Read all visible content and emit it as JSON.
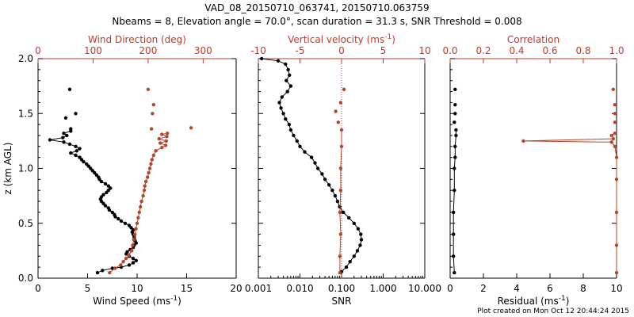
{
  "title": "VAD_08_20150710_063741, 20150710.063759",
  "subtitle": "Nbeams = 8, Elevation angle = 70.0°, scan duration = 31.3 s, SNR Threshold = 0.008",
  "footer": "Plot created on Mon Oct 12 20:44:24 2015",
  "colors": {
    "black": "#000000",
    "red": "#c0392b",
    "brown": "#b5452b"
  },
  "chart_data": [
    {
      "type": "line",
      "ylabel": "z (km AGL)",
      "ylim": [
        0,
        2.0
      ],
      "yticks": [
        "0.0",
        "0.5",
        "1.0",
        "1.5",
        "2.0"
      ],
      "bottom_axis": {
        "label_text": "Wind Speed (ms",
        "label_sup": "-1",
        "label_close": ")",
        "xlim": [
          0,
          20
        ],
        "ticks": [
          "0",
          "5",
          "10",
          "15",
          "20"
        ],
        "color": "#000000"
      },
      "top_axis": {
        "label_text": "Wind Direction (deg)",
        "label_sup": "",
        "label_close": "",
        "xlim": [
          0,
          360
        ],
        "ticks": [
          "0",
          "100",
          "200",
          "300"
        ],
        "ticks_at": [
          0,
          100,
          200,
          300
        ],
        "color": "#c0392b"
      },
      "series": [
        {
          "axis": "bottom",
          "color": "#000000",
          "connected": true,
          "points": [
            [
              6,
              0.05
            ],
            [
              6.5,
              0.07
            ],
            [
              7.5,
              0.09
            ],
            [
              8.4,
              0.1
            ],
            [
              9.2,
              0.12
            ],
            [
              9.6,
              0.14
            ],
            [
              9.9,
              0.16
            ],
            [
              9.6,
              0.18
            ],
            [
              9.2,
              0.2
            ],
            [
              8.9,
              0.22
            ],
            [
              9.0,
              0.24
            ],
            [
              9.3,
              0.26
            ],
            [
              9.6,
              0.28
            ],
            [
              9.7,
              0.3
            ],
            [
              9.9,
              0.32
            ],
            [
              9.8,
              0.34
            ],
            [
              9.7,
              0.36
            ],
            [
              9.7,
              0.38
            ],
            [
              9.6,
              0.4
            ],
            [
              9.5,
              0.42
            ],
            [
              9.6,
              0.44
            ],
            [
              9.4,
              0.46
            ],
            [
              9.2,
              0.48
            ],
            [
              8.8,
              0.5
            ],
            [
              8.4,
              0.52
            ],
            [
              8.1,
              0.54
            ],
            [
              7.8,
              0.56
            ],
            [
              7.7,
              0.58
            ],
            [
              7.5,
              0.6
            ],
            [
              7.2,
              0.62
            ],
            [
              7.1,
              0.64
            ],
            [
              6.8,
              0.66
            ],
            [
              6.6,
              0.68
            ],
            [
              6.4,
              0.7
            ],
            [
              6.3,
              0.72
            ],
            [
              6.4,
              0.74
            ],
            [
              6.6,
              0.76
            ],
            [
              6.9,
              0.78
            ],
            [
              7.1,
              0.8
            ],
            [
              7.3,
              0.82
            ],
            [
              7.1,
              0.84
            ],
            [
              6.8,
              0.86
            ],
            [
              6.4,
              0.88
            ],
            [
              6.2,
              0.9
            ],
            [
              6.1,
              0.92
            ],
            [
              5.9,
              0.94
            ],
            [
              5.7,
              0.96
            ],
            [
              5.5,
              0.98
            ],
            [
              5.3,
              1.0
            ],
            [
              5.1,
              1.02
            ],
            [
              4.9,
              1.04
            ],
            [
              4.6,
              1.06
            ],
            [
              4.4,
              1.08
            ],
            [
              4.2,
              1.1
            ],
            [
              3.8,
              1.12
            ],
            [
              3.3,
              1.14
            ],
            [
              3.9,
              1.16
            ],
            [
              4.2,
              1.18
            ],
            [
              3.8,
              1.2
            ],
            [
              3.2,
              1.22
            ],
            [
              2.6,
              1.24
            ],
            [
              1.2,
              1.26
            ],
            [
              2.5,
              1.28
            ],
            [
              2.9,
              1.3
            ],
            [
              2.6,
              1.32
            ],
            [
              3.3,
              1.34
            ]
          ]
        },
        {
          "axis": "bottom",
          "color": "#000000",
          "connected": false,
          "points": [
            [
              3.3,
              1.36
            ],
            [
              2.8,
              1.46
            ],
            [
              3.8,
              1.5
            ],
            [
              3.2,
              1.72
            ]
          ]
        },
        {
          "axis": "top",
          "color": "#b5452b",
          "connected": true,
          "points": [
            [
              130,
              0.05
            ],
            [
              140,
              0.09
            ],
            [
              150,
              0.12
            ],
            [
              155,
              0.15
            ],
            [
              160,
              0.18
            ],
            [
              165,
              0.21
            ],
            [
              170,
              0.25
            ],
            [
              172,
              0.3
            ],
            [
              174,
              0.35
            ],
            [
              176,
              0.4
            ],
            [
              178,
              0.45
            ],
            [
              180,
              0.5
            ],
            [
              182,
              0.55
            ],
            [
              184,
              0.6
            ],
            [
              186,
              0.65
            ],
            [
              188,
              0.7
            ],
            [
              191,
              0.75
            ],
            [
              193,
              0.8
            ],
            [
              194,
              0.84
            ],
            [
              196,
              0.88
            ],
            [
              199,
              0.92
            ],
            [
              201,
              0.96
            ],
            [
              203,
              1.0
            ],
            [
              205,
              1.04
            ],
            [
              207,
              1.08
            ],
            [
              210,
              1.12
            ],
            [
              214,
              1.16
            ],
            [
              225,
              1.19
            ],
            [
              232,
              1.21
            ],
            [
              222,
              1.23
            ],
            [
              233,
              1.25
            ],
            [
              220,
              1.27
            ],
            [
              234,
              1.29
            ],
            [
              225,
              1.31
            ],
            [
              235,
              1.32
            ]
          ]
        },
        {
          "axis": "top",
          "color": "#b5452b",
          "connected": false,
          "points": [
            [
              206,
              1.36
            ],
            [
              208,
              1.5
            ],
            [
              210,
              1.58
            ],
            [
              278,
              1.37
            ],
            [
              200,
              1.72
            ]
          ]
        }
      ]
    },
    {
      "type": "line",
      "ylim": [
        0,
        2.0
      ],
      "bottom_axis": {
        "label_text": "SNR",
        "label_sup": "",
        "label_close": "",
        "scale": "log",
        "xlim": [
          0.001,
          10
        ],
        "ticks": [
          "0.001",
          "0.010",
          "0.100",
          "1.000",
          "10.000"
        ],
        "ticks_at": [
          0.001,
          0.01,
          0.1,
          1,
          10
        ],
        "color": "#000000"
      },
      "top_axis": {
        "label_text": "Vertical velocity (ms",
        "label_sup": "-1",
        "label_close": ")",
        "xlim": [
          -10,
          10
        ],
        "ticks": [
          "-10",
          "-5",
          "0",
          "5",
          "10"
        ],
        "ticks_at": [
          -10,
          -5,
          0,
          5,
          10
        ],
        "color": "#c0392b",
        "reference_line": 0
      },
      "series": [
        {
          "axis": "bottom",
          "color": "#000000",
          "connected": true,
          "points": [
            [
              0.1,
              0.06
            ],
            [
              0.13,
              0.1
            ],
            [
              0.16,
              0.15
            ],
            [
              0.2,
              0.2
            ],
            [
              0.24,
              0.25
            ],
            [
              0.28,
              0.3
            ],
            [
              0.3,
              0.35
            ],
            [
              0.29,
              0.4
            ],
            [
              0.25,
              0.45
            ],
            [
              0.2,
              0.5
            ],
            [
              0.15,
              0.55
            ],
            [
              0.11,
              0.6
            ],
            [
              0.09,
              0.65
            ],
            [
              0.08,
              0.7
            ],
            [
              0.07,
              0.75
            ],
            [
              0.06,
              0.8
            ],
            [
              0.05,
              0.85
            ],
            [
              0.04,
              0.9
            ],
            [
              0.034,
              0.95
            ],
            [
              0.027,
              1.0
            ],
            [
              0.023,
              1.05
            ],
            [
              0.019,
              1.1
            ],
            [
              0.013,
              1.15
            ],
            [
              0.01,
              1.2
            ],
            [
              0.0085,
              1.25
            ],
            [
              0.007,
              1.3
            ],
            [
              0.006,
              1.35
            ],
            [
              0.0055,
              1.4
            ],
            [
              0.0045,
              1.45
            ],
            [
              0.004,
              1.5
            ],
            [
              0.0035,
              1.55
            ],
            [
              0.0032,
              1.6
            ],
            [
              0.0037,
              1.65
            ],
            [
              0.005,
              1.7
            ],
            [
              0.006,
              1.75
            ],
            [
              0.0047,
              1.8
            ],
            [
              0.0056,
              1.85
            ],
            [
              0.0052,
              1.9
            ],
            [
              0.0045,
              1.95
            ],
            [
              0.003,
              1.98
            ],
            [
              0.0012,
              2.0
            ]
          ]
        },
        {
          "axis": "top",
          "color": "#b5452b",
          "connected": true,
          "points": [
            [
              -0.2,
              0.05
            ],
            [
              -0.2,
              0.2
            ],
            [
              -0.1,
              0.4
            ],
            [
              -0.2,
              0.6
            ],
            [
              -0.1,
              0.8
            ],
            [
              -0.1,
              1.0
            ],
            [
              0.0,
              1.2
            ],
            [
              0.0,
              1.35
            ]
          ]
        },
        {
          "axis": "top",
          "color": "#b5452b",
          "connected": false,
          "points": [
            [
              -0.4,
              1.42
            ],
            [
              -0.7,
              1.52
            ],
            [
              -0.1,
              1.6
            ],
            [
              0.3,
              1.72
            ]
          ]
        }
      ]
    },
    {
      "type": "line",
      "ylim": [
        0,
        2.0
      ],
      "bottom_axis": {
        "label_text": "Residual (ms",
        "label_sup": "-1",
        "label_close": ")",
        "xlim": [
          0,
          10
        ],
        "ticks": [
          "0",
          "2",
          "4",
          "6",
          "8",
          "10"
        ],
        "ticks_at": [
          0,
          2,
          4,
          6,
          8,
          10
        ],
        "color": "#000000"
      },
      "top_axis": {
        "label_text": "Correlation",
        "label_sup": "",
        "label_close": "",
        "xlim": [
          0,
          1
        ],
        "ticks": [
          "0.0",
          "0.2",
          "0.4",
          "0.6",
          "0.8",
          "1.0"
        ],
        "ticks_at": [
          0,
          0.2,
          0.4,
          0.6,
          0.8,
          1.0
        ],
        "color": "#c0392b"
      },
      "series": [
        {
          "axis": "bottom",
          "color": "#000000",
          "connected": true,
          "points": [
            [
              0.25,
              0.05
            ],
            [
              0.2,
              0.2
            ],
            [
              0.2,
              0.4
            ],
            [
              0.2,
              0.6
            ],
            [
              0.25,
              0.8
            ],
            [
              0.25,
              1.0
            ],
            [
              0.3,
              1.1
            ],
            [
              0.3,
              1.2
            ],
            [
              0.35,
              1.3
            ],
            [
              0.35,
              1.35
            ]
          ]
        },
        {
          "axis": "bottom",
          "color": "#000000",
          "connected": false,
          "points": [
            [
              0.25,
              1.42
            ],
            [
              0.3,
              1.5
            ],
            [
              0.3,
              1.58
            ],
            [
              0.3,
              1.72
            ]
          ]
        },
        {
          "axis": "top",
          "color": "#b5452b",
          "connected": true,
          "points": [
            [
              1.0,
              0.05
            ],
            [
              1.0,
              0.3
            ],
            [
              1.0,
              0.6
            ],
            [
              1.0,
              0.9
            ],
            [
              1.0,
              1.1
            ],
            [
              0.99,
              1.2
            ],
            [
              0.97,
              1.24
            ],
            [
              0.44,
              1.25
            ],
            [
              0.98,
              1.27
            ],
            [
              0.97,
              1.3
            ],
            [
              0.99,
              1.32
            ]
          ]
        },
        {
          "axis": "top",
          "color": "#b5452b",
          "connected": false,
          "points": [
            [
              0.99,
              1.42
            ],
            [
              0.99,
              1.5
            ],
            [
              0.99,
              1.58
            ],
            [
              0.98,
              1.72
            ]
          ]
        }
      ]
    }
  ]
}
